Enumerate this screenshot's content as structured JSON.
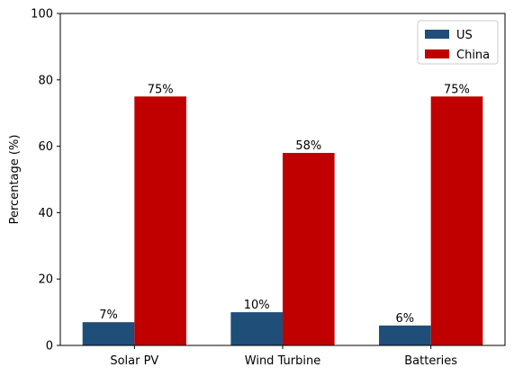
{
  "chart_data": {
    "type": "bar",
    "title": "",
    "xlabel": "",
    "ylabel": "Percentage (%)",
    "ylim": [
      0,
      100
    ],
    "yticks": [
      0,
      20,
      40,
      60,
      80,
      100
    ],
    "categories": [
      "Solar PV",
      "Wind Turbine",
      "Batteries"
    ],
    "series": [
      {
        "name": "US",
        "values": [
          7,
          10,
          6
        ],
        "labels": [
          "7%",
          "10%",
          "6%"
        ],
        "color": "#1f4e79"
      },
      {
        "name": "China",
        "values": [
          75,
          58,
          75
        ],
        "labels": [
          "75%",
          "58%",
          "75%"
        ],
        "color": "#c00000"
      }
    ],
    "legend": "top-right",
    "grid": false
  }
}
